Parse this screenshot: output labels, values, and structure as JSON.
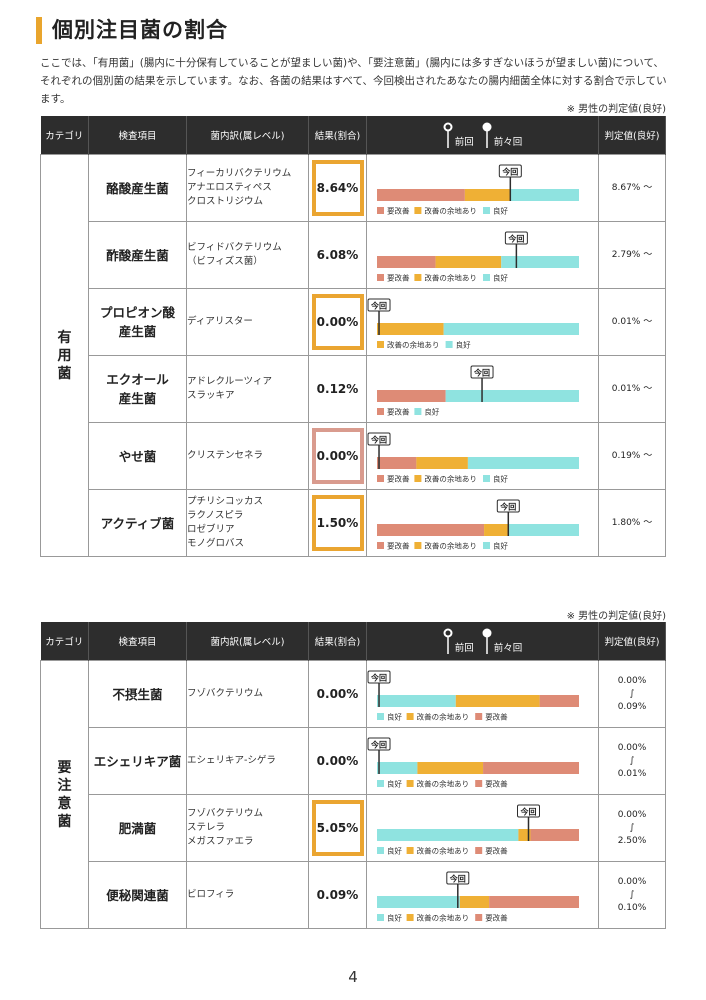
{
  "title": "個別注目菌の割合",
  "intro": "ここでは、「有用菌」(腸内に十分保有していることが望ましい菌)や、「要注意菌」(腸内には多すぎないほうが望ましい菌)について、それぞれの個別菌の結果を示しています。なお、各菌の結果はすべて、今回検出されたあなたの腸内細菌全体に対する割合で示しています。",
  "note": "※ 男性の判定値(良好)",
  "headers": {
    "category": "カテゴリ",
    "item": "検査項目",
    "genus": "菌内訳(属レベル)",
    "result": "結果(割合)",
    "prev": "前回",
    "prev2": "前々回",
    "ref": "判定値(良好)"
  },
  "marker_label": "今回",
  "legend": {
    "bad": "要改善",
    "mid": "改善の余地あり",
    "good": "良好"
  },
  "colors": {
    "bad": "#de8b76",
    "mid": "#efb035",
    "good": "#8fe3e0",
    "marker": "#2d2d2d"
  },
  "useful": {
    "category": "有用菌",
    "rows": [
      {
        "item": "酪酸産生菌",
        "genus": [
          "フィーカリバクテリウム",
          "アナエロスティペス",
          "クロストリジウム"
        ],
        "result": "8.64%",
        "highlight": "orange",
        "segments": [
          [
            "bad",
            43.5
          ],
          [
            "mid",
            22.5
          ],
          [
            "good",
            34
          ]
        ],
        "marker": 66,
        "legend": [
          "bad",
          "mid",
          "good"
        ],
        "ref": [
          "8.67% ～"
        ]
      },
      {
        "item": "酢酸産生菌",
        "genus": [
          "ビフィドバクテリウム",
          "（ビフィズス菌）"
        ],
        "result": "6.08%",
        "highlight": "none",
        "segments": [
          [
            "bad",
            29
          ],
          [
            "mid",
            32.5
          ],
          [
            "good",
            38.5
          ]
        ],
        "marker": 69,
        "legend": [
          "bad",
          "mid",
          "good"
        ],
        "ref": [
          "2.79% ～"
        ]
      },
      {
        "item": "プロピオン酸産生菌",
        "item_lines": [
          "プロピオン酸",
          "産生菌"
        ],
        "genus": [
          "ディアリスター"
        ],
        "result": "0.00%",
        "highlight": "orange",
        "segments": [
          [
            "mid",
            33
          ],
          [
            "good",
            67
          ]
        ],
        "marker": 1,
        "legend": [
          "mid",
          "good"
        ],
        "ref": [
          "0.01% ～"
        ]
      },
      {
        "item": "エクオール産生菌",
        "item_lines": [
          "エクオール",
          "産生菌"
        ],
        "genus": [
          "アドレクルーツィア",
          "スラッキア"
        ],
        "result": "0.12%",
        "highlight": "none",
        "segments": [
          [
            "bad",
            34
          ],
          [
            "good",
            66
          ]
        ],
        "marker": 52,
        "legend": [
          "bad",
          "good"
        ],
        "ref": [
          "0.01% ～"
        ]
      },
      {
        "item": "やせ菌",
        "genus": [
          "クリステンセネラ"
        ],
        "result": "0.00%",
        "highlight": "red",
        "segments": [
          [
            "bad",
            19.5
          ],
          [
            "mid",
            25.5
          ],
          [
            "good",
            55
          ]
        ],
        "marker": 1,
        "legend": [
          "bad",
          "mid",
          "good"
        ],
        "ref": [
          "0.19% ～"
        ]
      },
      {
        "item": "アクティブ菌",
        "genus": [
          "プチリシコッカス",
          "ラクノスピラ",
          "ロゼブリア",
          "モノグロバス"
        ],
        "result": "1.50%",
        "highlight": "orange",
        "segments": [
          [
            "bad",
            53
          ],
          [
            "mid",
            12
          ],
          [
            "good",
            35
          ]
        ],
        "marker": 65,
        "legend": [
          "bad",
          "mid",
          "good"
        ],
        "ref": [
          "1.80% ～"
        ]
      }
    ]
  },
  "caution": {
    "category": "要注意菌",
    "rows": [
      {
        "item": "不摂生菌",
        "genus": [
          "フゾバクテリウム"
        ],
        "result": "0.00%",
        "highlight": "none",
        "segments": [
          [
            "good",
            39
          ],
          [
            "mid",
            41.5
          ],
          [
            "bad",
            19.5
          ]
        ],
        "marker": 1,
        "legend": [
          "good",
          "mid",
          "bad"
        ],
        "ref": [
          "0.00%",
          "∫",
          "0.09%"
        ]
      },
      {
        "item": "エシェリキア菌",
        "genus": [
          "エシェリキア-シゲラ"
        ],
        "result": "0.00%",
        "highlight": "none",
        "segments": [
          [
            "good",
            20
          ],
          [
            "mid",
            32.5
          ],
          [
            "bad",
            47.5
          ]
        ],
        "marker": 1,
        "legend": [
          "good",
          "mid",
          "bad"
        ],
        "ref": [
          "0.00%",
          "∫",
          "0.01%"
        ]
      },
      {
        "item": "肥満菌",
        "genus": [
          "フゾバクテリウム",
          "ステレラ",
          "メガスファエラ"
        ],
        "result": "5.05%",
        "highlight": "orange",
        "segments": [
          [
            "good",
            70
          ],
          [
            "mid",
            6
          ],
          [
            "bad",
            24
          ]
        ],
        "marker": 75,
        "legend": [
          "good",
          "mid",
          "bad"
        ],
        "ref": [
          "0.00%",
          "∫",
          "2.50%"
        ]
      },
      {
        "item": "便秘関連菌",
        "genus": [
          "ビロフィラ"
        ],
        "result": "0.09%",
        "highlight": "none",
        "segments": [
          [
            "good",
            41
          ],
          [
            "mid",
            14.5
          ],
          [
            "bad",
            44.5
          ]
        ],
        "marker": 40,
        "legend": [
          "good",
          "mid",
          "bad"
        ],
        "ref": [
          "0.00%",
          "∫",
          "0.10%"
        ]
      }
    ]
  },
  "page_number": "4"
}
